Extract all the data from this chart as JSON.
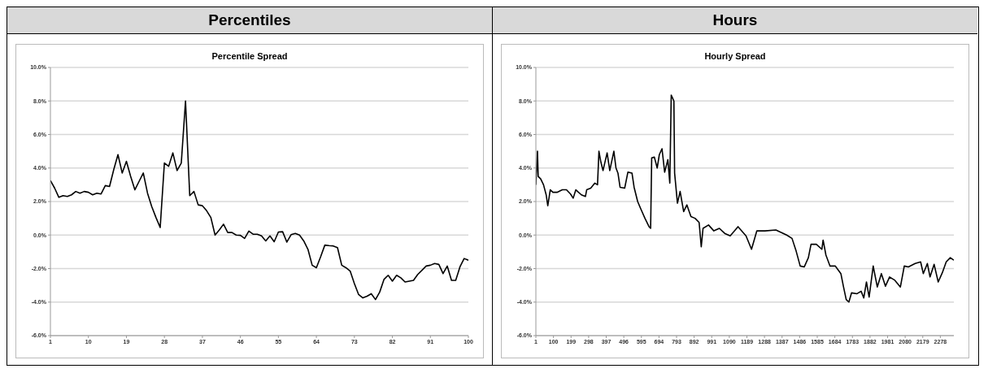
{
  "chart_data": [
    {
      "type": "line",
      "title": "Percentiles",
      "subtitle": "Percentile Spread",
      "x": [
        1,
        2,
        3,
        4,
        5,
        6,
        7,
        8,
        9,
        10,
        11,
        12,
        13,
        14,
        15,
        16,
        17,
        18,
        19,
        20,
        21,
        22,
        23,
        24,
        25,
        26,
        27,
        28,
        29,
        30,
        31,
        32,
        33,
        34,
        35,
        36,
        37,
        38,
        39,
        40,
        41,
        42,
        43,
        44,
        45,
        46,
        47,
        48,
        49,
        50,
        51,
        52,
        53,
        54,
        55,
        56,
        57,
        58,
        59,
        60,
        61,
        62,
        63,
        64,
        65,
        66,
        67,
        68,
        69,
        70,
        71,
        72,
        73,
        74,
        75,
        76,
        77,
        78,
        79,
        80,
        81,
        82,
        83,
        84,
        85,
        86,
        87,
        88,
        89,
        90,
        91,
        92,
        93,
        94,
        95,
        96,
        97,
        98,
        99,
        100
      ],
      "series": [
        {
          "color": "#000000",
          "values": [
            3.26,
            2.8,
            2.25,
            2.35,
            2.3,
            2.4,
            2.6,
            2.5,
            2.6,
            2.55,
            2.4,
            2.5,
            2.45,
            2.95,
            2.9,
            3.9,
            4.8,
            3.7,
            4.4,
            3.5,
            2.7,
            3.2,
            3.7,
            2.5,
            1.7,
            1.05,
            0.45,
            4.3,
            4.1,
            4.9,
            3.85,
            4.3,
            8.0,
            2.35,
            2.6,
            1.8,
            1.75,
            1.45,
            1.05,
            0.0,
            0.3,
            0.65,
            0.15,
            0.15,
            0.0,
            -0.02,
            -0.2,
            0.24,
            0.05,
            0.05,
            -0.05,
            -0.35,
            -0.05,
            -0.4,
            0.18,
            0.2,
            -0.42,
            0.02,
            0.1,
            0.0,
            -0.35,
            -0.85,
            -1.8,
            -1.95,
            -1.3,
            -0.6,
            -0.63,
            -0.65,
            -0.75,
            -1.8,
            -1.95,
            -2.15,
            -2.9,
            -3.55,
            -3.75,
            -3.65,
            -3.5,
            -3.85,
            -3.4,
            -2.65,
            -2.4,
            -2.75,
            -2.4,
            -2.55,
            -2.8,
            -2.75,
            -2.7,
            -2.35,
            -2.1,
            -1.85,
            -1.8,
            -1.7,
            -1.75,
            -2.3,
            -1.85,
            -2.7,
            -2.7,
            -1.9,
            -1.4,
            -1.5
          ]
        }
      ],
      "xlim": [
        1,
        100
      ],
      "xticks": [
        1,
        10,
        19,
        28,
        37,
        46,
        55,
        64,
        73,
        82,
        91,
        100
      ],
      "ylim": [
        -6,
        10
      ],
      "yticks": [
        {
          "value": -6,
          "label": "-6.0%"
        },
        {
          "value": -4,
          "label": "-4.0%"
        },
        {
          "value": -2,
          "label": "-2.0%"
        },
        {
          "value": 0,
          "label": "0.0%"
        },
        {
          "value": 2,
          "label": "2.0%"
        },
        {
          "value": 4,
          "label": "4.0%"
        },
        {
          "value": 6,
          "label": "6.0%"
        },
        {
          "value": 8,
          "label": "8.0%"
        },
        {
          "value": 10,
          "label": "10.0%"
        }
      ],
      "grid": "y",
      "marker": "none",
      "line_style": "solid"
    },
    {
      "type": "line",
      "title": "Hours",
      "subtitle": "Hourly Spread",
      "x": [
        1,
        10,
        14,
        28,
        44,
        59,
        68,
        82,
        97,
        120,
        150,
        173,
        196,
        211,
        226,
        257,
        280,
        287,
        310,
        333,
        348,
        356,
        367,
        379,
        402,
        417,
        440,
        452,
        463,
        475,
        501,
        519,
        542,
        554,
        574,
        592,
        615,
        638,
        647,
        653,
        668,
        684,
        696,
        711,
        726,
        744,
        755,
        763,
        778,
        782,
        798,
        813,
        833,
        851,
        874,
        897,
        920,
        932,
        942,
        973,
        1003,
        1034,
        1064,
        1095,
        1139,
        1184,
        1215,
        1245,
        1291,
        1352,
        1413,
        1443,
        1466,
        1489,
        1512,
        1535,
        1550,
        1580,
        1611,
        1618,
        1634,
        1657,
        1687,
        1718,
        1733,
        1748,
        1763,
        1778,
        1809,
        1832,
        1847,
        1862,
        1877,
        1900,
        1923,
        1946,
        1969,
        1992,
        2022,
        2053,
        2075,
        2098,
        2136,
        2167,
        2182,
        2205,
        2220,
        2243,
        2266,
        2289,
        2311,
        2334,
        2354
      ],
      "series": [
        {
          "color": "#000000",
          "values": [
            3.0,
            5.0,
            3.5,
            3.35,
            3.0,
            2.4,
            1.75,
            2.7,
            2.55,
            2.55,
            2.7,
            2.7,
            2.45,
            2.2,
            2.7,
            2.4,
            2.3,
            2.7,
            2.8,
            3.1,
            3.0,
            5.0,
            4.35,
            3.85,
            4.9,
            3.85,
            5.0,
            4.0,
            3.7,
            2.85,
            2.8,
            3.75,
            3.7,
            2.85,
            2.0,
            1.55,
            1.0,
            0.5,
            0.4,
            4.6,
            4.65,
            4.0,
            4.8,
            5.15,
            3.75,
            4.5,
            3.1,
            8.35,
            8.0,
            3.7,
            1.9,
            2.6,
            1.4,
            1.8,
            1.1,
            1.0,
            0.75,
            -0.7,
            0.4,
            0.6,
            0.25,
            0.4,
            0.1,
            -0.05,
            0.5,
            -0.05,
            -0.85,
            0.25,
            0.25,
            0.3,
            0.0,
            -0.2,
            -0.95,
            -1.85,
            -1.9,
            -1.35,
            -0.55,
            -0.55,
            -0.85,
            -0.3,
            -1.2,
            -1.85,
            -1.85,
            -2.3,
            -3.1,
            -3.85,
            -4.0,
            -3.45,
            -3.5,
            -3.35,
            -3.75,
            -2.8,
            -3.7,
            -1.85,
            -3.1,
            -2.3,
            -3.05,
            -2.5,
            -2.7,
            -3.1,
            -1.85,
            -1.9,
            -1.7,
            -1.6,
            -2.3,
            -1.7,
            -2.5,
            -1.75,
            -2.8,
            -2.25,
            -1.6,
            -1.35,
            -1.5
          ]
        }
      ],
      "xlim": [
        1,
        2354
      ],
      "xticks": [
        1,
        100,
        199,
        298,
        397,
        496,
        595,
        694,
        793,
        892,
        991,
        1090,
        1189,
        1288,
        1387,
        1486,
        1585,
        1684,
        1783,
        1882,
        1981,
        2080,
        2179,
        2278
      ],
      "ylim": [
        -6,
        10
      ],
      "yticks": [
        {
          "value": -6,
          "label": "-6.0%"
        },
        {
          "value": -4,
          "label": "-4.0%"
        },
        {
          "value": -2,
          "label": "-2.0%"
        },
        {
          "value": 0,
          "label": "0.0%"
        },
        {
          "value": 2,
          "label": "2.0%"
        },
        {
          "value": 4,
          "label": "4.0%"
        },
        {
          "value": 6,
          "label": "6.0%"
        },
        {
          "value": 8,
          "label": "8.0%"
        },
        {
          "value": 10,
          "label": "10.0%"
        }
      ],
      "grid": "y",
      "marker": "none",
      "line_style": "solid"
    }
  ]
}
